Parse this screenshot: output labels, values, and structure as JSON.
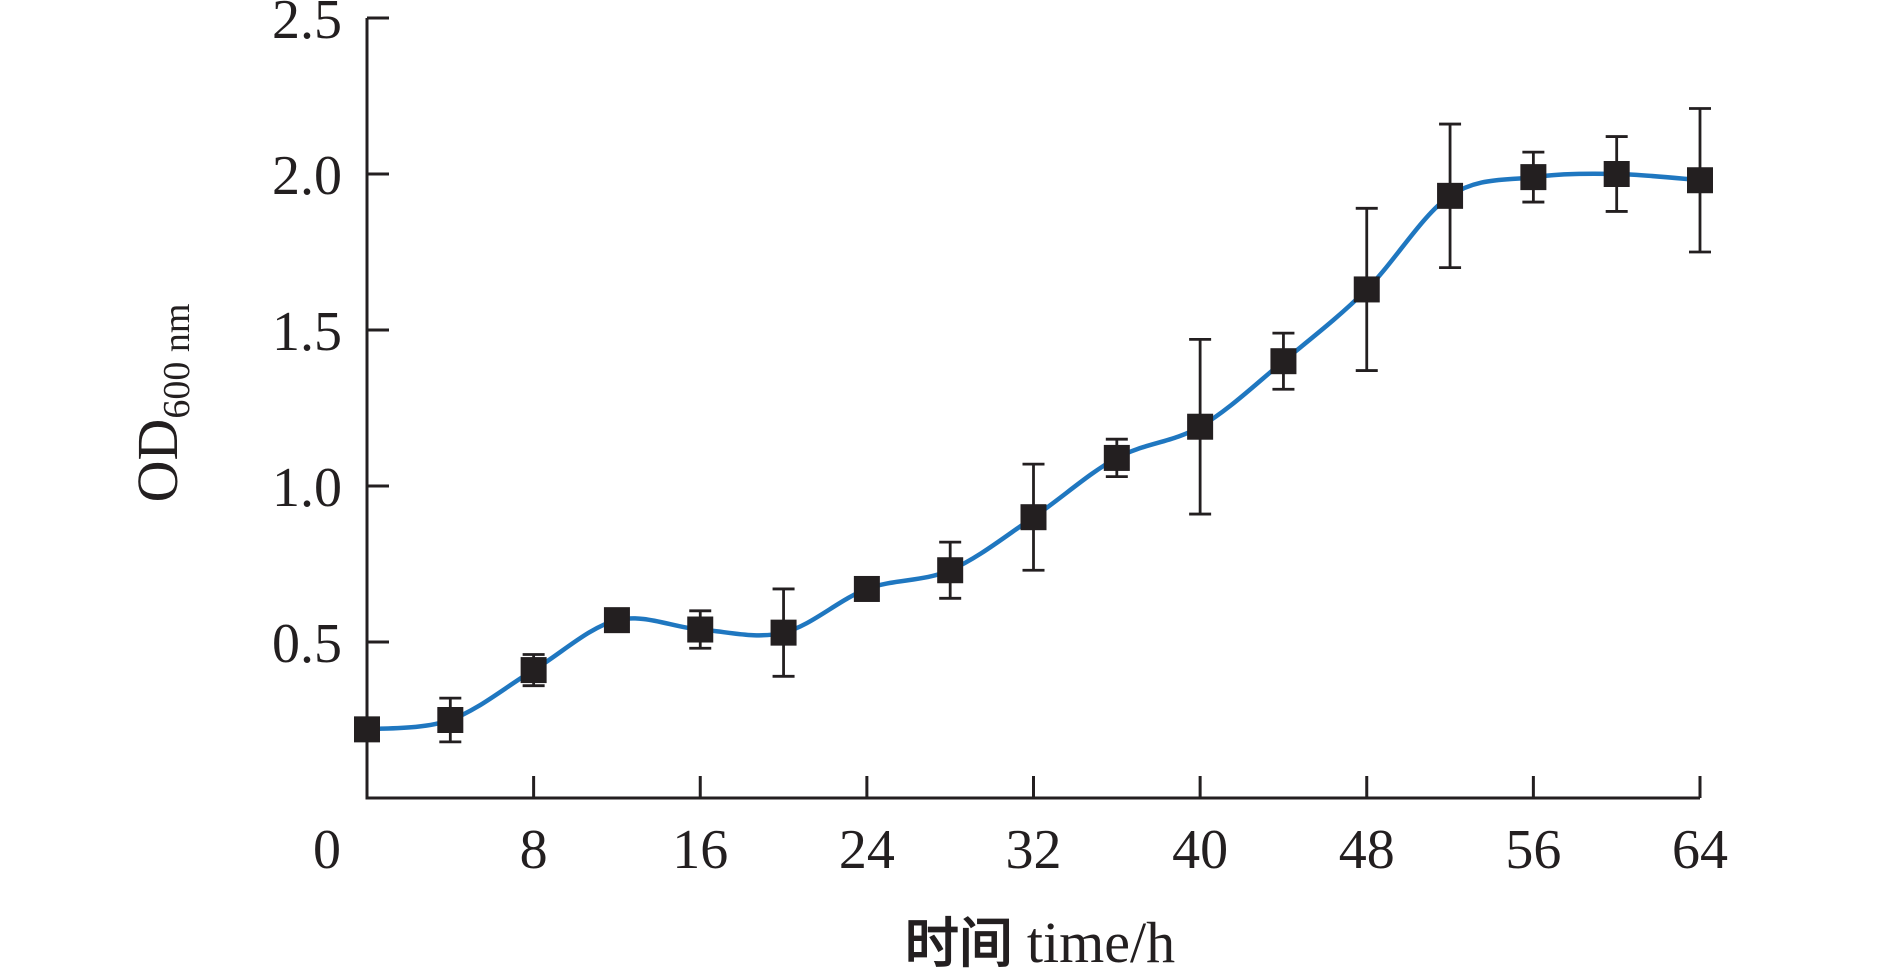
{
  "chart_data": {
    "type": "line",
    "xlabel": {
      "zh": "时间",
      "en": "time/h"
    },
    "ylabel": {
      "main": "OD",
      "sub": "600 nm"
    },
    "xlim": [
      0,
      64
    ],
    "ylim": [
      0,
      2.5
    ],
    "x_ticks": [
      "0",
      "8",
      "16",
      "24",
      "32",
      "40",
      "48",
      "56",
      "64"
    ],
    "y_ticks": [
      "0.5",
      "1.0",
      "1.5",
      "2.0",
      "2.5"
    ],
    "grid": false,
    "legend": "none",
    "line_color": "#1f77c0",
    "marker_color": "#231f20",
    "series": [
      {
        "x": [
          0,
          4,
          8,
          12,
          16,
          20,
          24,
          28,
          32,
          36,
          40,
          44,
          48,
          52,
          56,
          60,
          64
        ],
        "values": [
          0.22,
          0.25,
          0.41,
          0.57,
          0.54,
          0.53,
          0.67,
          0.73,
          0.9,
          1.09,
          1.19,
          1.4,
          1.63,
          1.93,
          1.99,
          2.0,
          1.98
        ],
        "error": [
          0.0,
          0.07,
          0.05,
          0.0,
          0.06,
          0.14,
          0.0,
          0.09,
          0.17,
          0.06,
          0.28,
          0.09,
          0.26,
          0.23,
          0.08,
          0.12,
          0.23
        ]
      }
    ]
  }
}
